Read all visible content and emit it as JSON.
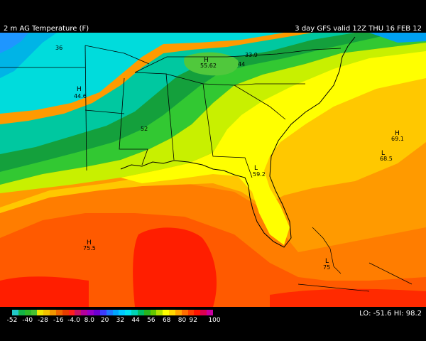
{
  "header": {
    "field_title": "2 m AG Temperature (F)",
    "valid_time": "3 day GFS valid 12Z THU 16 FEB 12"
  },
  "legend": {
    "labels": [
      "-52",
      "-40",
      "-28",
      "-16",
      "-4.0",
      "8.0",
      "20",
      "32",
      "44",
      "56",
      "68",
      "80",
      "92",
      "100"
    ],
    "colors": [
      "#22c8c8",
      "#14b446",
      "#2db928",
      "#48c132",
      "#f0e600",
      "#f5c300",
      "#f09600",
      "#ec6400",
      "#e63c00",
      "#ff1e1e",
      "#c81464",
      "#b4009b",
      "#9600c8",
      "#6e00d2",
      "#3c3cff",
      "#1e78ff",
      "#00a5ff",
      "#00c8ff",
      "#00e1f0",
      "#00d2b4",
      "#00be64",
      "#28b41e",
      "#64c800",
      "#b4e100",
      "#ffff00",
      "#ffd700",
      "#ffa500",
      "#ff6e00",
      "#ff3c00",
      "#ff1400",
      "#dc0050",
      "#c800a0"
    ]
  },
  "stats": {
    "lo_label": "LO:",
    "lo_value": "-51.6",
    "hi_label": "HI:",
    "hi_value": "98.2"
  },
  "map": {
    "highs": [
      {
        "mark": "H",
        "value": "55.62"
      },
      {
        "mark": "H",
        "value": "44.6"
      },
      {
        "mark": "H",
        "value": "69.1"
      },
      {
        "mark": "H",
        "value": "75.5"
      }
    ],
    "lows": [
      {
        "mark": "L",
        "value": "59.2"
      },
      {
        "mark": "L",
        "value": "68.5"
      },
      {
        "mark": "L",
        "value": "75"
      }
    ],
    "values": [
      "36",
      "44",
      "33.9",
      "52"
    ]
  }
}
